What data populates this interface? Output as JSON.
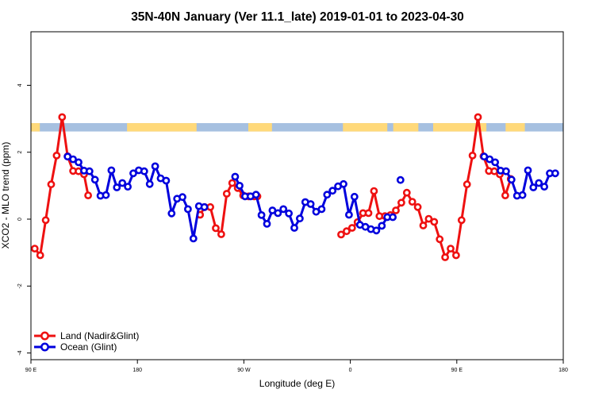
{
  "chart_data": {
    "type": "line",
    "title": "35N-40N January (Ver 11.1_late)   2019-01-01 to 2023-04-30",
    "xlabel": "Longitude (deg E)",
    "ylabel": "XCO2 - MLO trend (ppm)",
    "xlim": [
      90,
      450
    ],
    "ylim": [
      -4.2,
      5.6
    ],
    "x_ticks": [
      {
        "value": 90,
        "label": "90 E"
      },
      {
        "value": 162,
        "label": "180"
      },
      {
        "value": 234,
        "label": "90 W"
      },
      {
        "value": 306,
        "label": "0"
      },
      {
        "value": 378,
        "label": "90 E"
      },
      {
        "value": 450,
        "label": "180"
      }
    ],
    "y_ticks": [
      {
        "value": -4,
        "label": "-4"
      },
      {
        "value": -2,
        "label": "-2"
      },
      {
        "value": 0,
        "label": "0"
      },
      {
        "value": 2,
        "label": "2"
      },
      {
        "value": 4,
        "label": "4"
      }
    ],
    "land_ocean_strip": {
      "y_bottom": 2.62,
      "y_top": 2.87,
      "land_color": "#ffd97a",
      "ocean_color": "#a6c0e0",
      "land_ranges": [
        [
          90,
          96
        ],
        [
          155,
          202
        ],
        [
          237,
          253
        ],
        [
          301,
          331
        ],
        [
          335,
          352
        ],
        [
          362,
          398
        ],
        [
          411,
          424
        ]
      ]
    },
    "series": [
      {
        "name": "Land (Nadir&Glint)",
        "color": "#ee1111",
        "x": [
          92.6,
          96.3,
          100,
          103.7,
          107.4,
          111.1,
          114.8,
          118.5,
          122.2,
          125.9,
          128.7,
          204.4,
          207.5,
          211.3,
          215,
          218.7,
          222.4,
          226.1,
          229.8,
          233.5,
          237.2,
          240.9,
          243.2,
          299.8,
          303.5,
          307.2,
          310.9,
          314.6,
          318.3,
          322,
          325.7,
          329.4,
          333.1,
          336.8,
          340.5,
          344.2,
          347.9,
          351.6,
          355.3,
          359,
          362.7,
          366.4,
          370.1,
          373.8,
          377.5,
          381.2,
          384.9,
          388.6,
          392.3,
          396,
          399.7,
          403.4,
          407.1,
          410.8,
          414.5
        ],
        "y": [
          -0.88,
          -1.08,
          -0.03,
          1.04,
          1.9,
          3.05,
          1.88,
          1.44,
          1.43,
          1.34,
          0.71,
          0.13,
          0.36,
          0.36,
          -0.27,
          -0.45,
          0.76,
          1.08,
          0.93,
          0.71,
          0.68,
          0.68,
          0.68,
          -0.46,
          -0.36,
          -0.26,
          -0.09,
          0.18,
          0.18,
          0.84,
          0.09,
          0.09,
          0.12,
          0.26,
          0.49,
          0.79,
          0.52,
          0.36,
          -0.19,
          0.01,
          -0.08,
          -0.6,
          -1.14,
          -0.88,
          -1.08,
          -0.03,
          1.04,
          1.9,
          3.05,
          1.88,
          1.44,
          1.43,
          1.34,
          0.71,
          1.2
        ]
      },
      {
        "name": "Ocean (Glint)",
        "color": "#0000dd",
        "x": [
          114.8,
          118.5,
          122.2,
          125.9,
          129.6,
          133.3,
          137,
          140.7,
          144.4,
          148.1,
          151.8,
          155.5,
          159.2,
          162.9,
          166.6,
          170.3,
          174,
          177.7,
          181.4,
          185.1,
          188.8,
          192.5,
          196.2,
          199.9,
          203.6,
          207.3,
          228.1,
          231.1,
          234.8,
          238.5,
          242.2,
          245.9,
          249.6,
          253.3,
          257,
          260.7,
          264.4,
          268.1,
          271.8,
          275.5,
          279.2,
          282.9,
          286.6,
          290.3,
          294,
          297.7,
          301.4,
          305.1,
          308.8,
          312.5,
          316.2,
          319.9,
          323.6,
          327.3,
          331,
          334.7,
          339.9,
          396.5,
          400.2,
          403.9,
          407.6,
          411.3,
          415,
          418.7,
          422.4,
          426.1,
          429.8,
          433.5,
          437.2,
          440.9,
          444.6
        ],
        "y": [
          1.87,
          1.79,
          1.7,
          1.45,
          1.43,
          1.18,
          0.7,
          0.72,
          1.46,
          0.95,
          1.08,
          0.97,
          1.37,
          1.46,
          1.43,
          1.05,
          1.58,
          1.22,
          1.15,
          0.17,
          0.61,
          0.66,
          0.3,
          -0.58,
          0.39,
          0.36,
          1.27,
          1.0,
          0.68,
          0.68,
          0.73,
          0.12,
          -0.14,
          0.26,
          0.18,
          0.3,
          0.17,
          -0.26,
          0.02,
          0.51,
          0.45,
          0.22,
          0.3,
          0.73,
          0.85,
          0.98,
          1.05,
          0.13,
          0.67,
          -0.17,
          -0.23,
          -0.3,
          -0.34,
          -0.2,
          0.06,
          0.06,
          1.17,
          1.87,
          1.79,
          1.7,
          1.45,
          1.43,
          1.18,
          0.7,
          0.72,
          1.46,
          0.95,
          1.08,
          0.97,
          1.37,
          1.37
        ]
      }
    ],
    "legend": {
      "position": "bottom-left",
      "entries": [
        "Land (Nadir&Glint)",
        "Ocean (Glint)"
      ]
    },
    "grid": false
  }
}
